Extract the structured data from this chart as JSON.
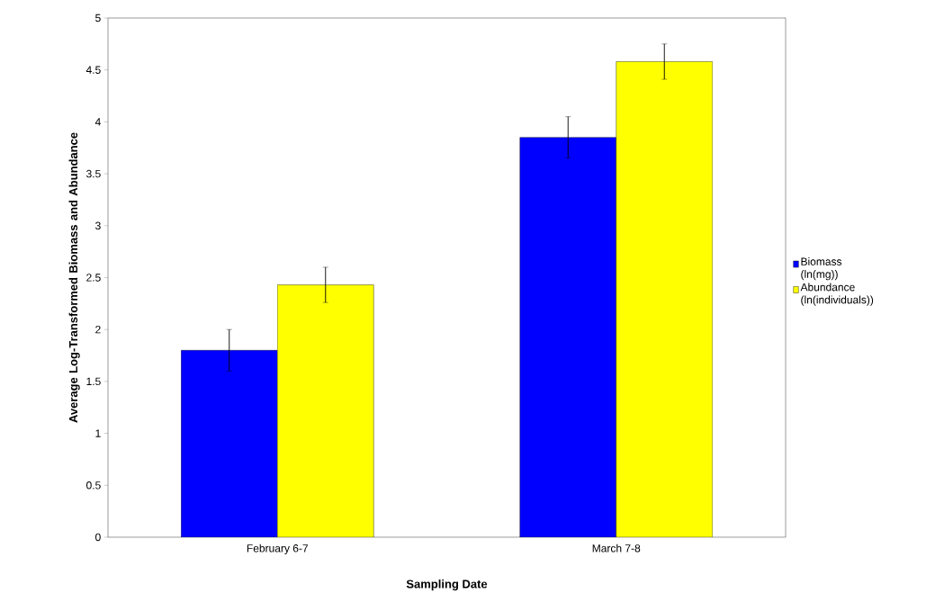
{
  "chart_data": {
    "type": "bar",
    "xlabel": "Sampling Date",
    "ylabel": "Average Log-Transformed Biomass and Abundance",
    "categories": [
      "February 6-7",
      "March 7-8"
    ],
    "series": [
      {
        "name": "Biomass (ln(mg))",
        "color": "#0000ff",
        "values": [
          1.8,
          3.85
        ],
        "errors": [
          0.2,
          0.2
        ]
      },
      {
        "name": "Abundance (ln(individuals))",
        "color": "#ffff00",
        "values": [
          2.43,
          4.58
        ],
        "errors": [
          0.17,
          0.17
        ]
      }
    ],
    "ylim": [
      0,
      5
    ],
    "yticks": [
      0,
      0.5,
      1,
      1.5,
      2,
      2.5,
      3,
      3.5,
      4,
      4.5,
      5
    ],
    "grid": false,
    "legend": "right"
  }
}
